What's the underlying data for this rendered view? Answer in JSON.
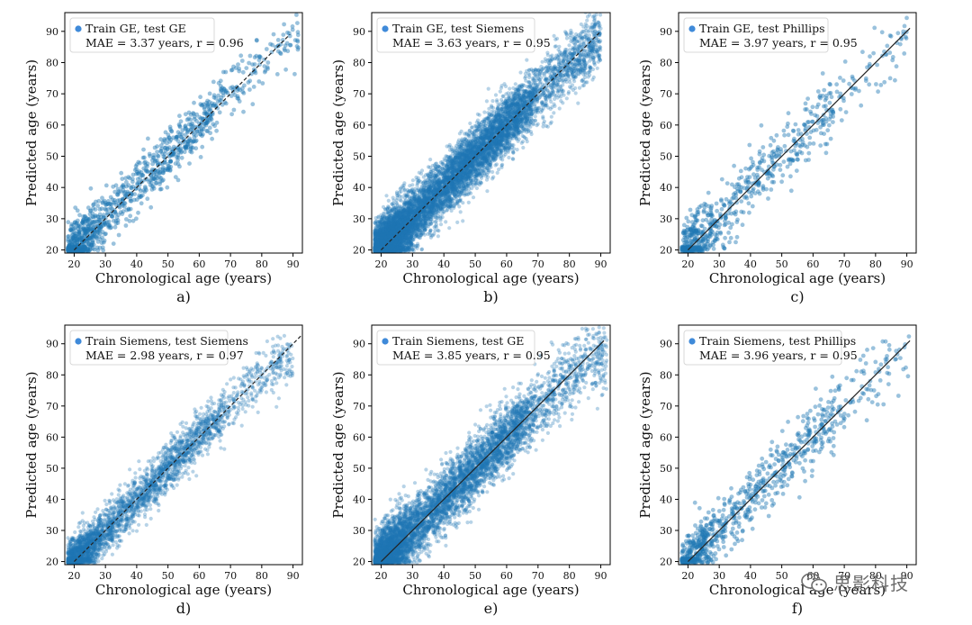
{
  "colors": {
    "point": "#1f77b4",
    "axis": "#000000",
    "identity": "#222222",
    "legend_dot": "#3f8ad9"
  },
  "chart_data": [
    {
      "type": "scatter",
      "panel_label": "a)",
      "legend": "Train GE, test GE",
      "stat": "MAE = 3.37 years, r = 0.96",
      "xlabel": "Chronological age (years)",
      "ylabel": "Predicted age (years)",
      "xlim": [
        17,
        93
      ],
      "ylim": [
        19,
        96
      ],
      "xticks": [
        20,
        30,
        40,
        50,
        60,
        70,
        80,
        90
      ],
      "yticks": [
        20,
        30,
        40,
        50,
        60,
        70,
        80,
        90
      ],
      "identity_line": [
        20,
        89
      ],
      "identity_style": "dashed",
      "mae": 3.37,
      "r": 0.96,
      "approx_points": 1100,
      "x_range": [
        18,
        92
      ]
    },
    {
      "type": "scatter",
      "panel_label": "b)",
      "legend": "Train GE, test Siemens",
      "stat": "MAE = 3.63 years, r = 0.95",
      "xlabel": "Chronological age (years)",
      "ylabel": "Predicted age (years)",
      "xlim": [
        17,
        93
      ],
      "ylim": [
        19,
        96
      ],
      "xticks": [
        20,
        30,
        40,
        50,
        60,
        70,
        80,
        90
      ],
      "yticks": [
        20,
        30,
        40,
        50,
        60,
        70,
        80,
        90
      ],
      "identity_line": [
        20,
        90
      ],
      "identity_style": "dashed",
      "mae": 3.63,
      "r": 0.95,
      "approx_points": 9000,
      "x_range": [
        18,
        90
      ]
    },
    {
      "type": "scatter",
      "panel_label": "c)",
      "legend": "Train GE, test Phillips",
      "stat": "MAE = 3.97 years, r = 0.95",
      "xlabel": "Chronological age (years)",
      "ylabel": "Predicted age (years)",
      "xlim": [
        17,
        93
      ],
      "ylim": [
        19,
        96
      ],
      "xticks": [
        20,
        30,
        40,
        50,
        60,
        70,
        80,
        90
      ],
      "yticks": [
        20,
        30,
        40,
        50,
        60,
        70,
        80,
        90
      ],
      "identity_line": [
        20,
        91
      ],
      "identity_style": "solid",
      "mae": 3.97,
      "r": 0.95,
      "approx_points": 700,
      "x_range": [
        18,
        90
      ]
    },
    {
      "type": "scatter",
      "panel_label": "d)",
      "legend": "Train Siemens, test Siemens",
      "stat": "MAE = 2.98 years, r = 0.97",
      "xlabel": "Chronological age (years)",
      "ylabel": "Predicted age (years)",
      "xlim": [
        17,
        93
      ],
      "ylim": [
        19,
        96
      ],
      "xticks": [
        20,
        30,
        40,
        50,
        60,
        70,
        80,
        90
      ],
      "yticks": [
        20,
        30,
        40,
        50,
        60,
        70,
        80,
        90
      ],
      "identity_line": [
        20,
        93
      ],
      "identity_style": "dashed",
      "mae": 2.98,
      "r": 0.97,
      "approx_points": 3000,
      "x_range": [
        18,
        90
      ]
    },
    {
      "type": "scatter",
      "panel_label": "e)",
      "legend": "Train Siemens, test GE",
      "stat": "MAE = 3.85 years, r = 0.95",
      "xlabel": "Chronological age (years)",
      "ylabel": "Predicted age (years)",
      "xlim": [
        17,
        93
      ],
      "ylim": [
        19,
        96
      ],
      "xticks": [
        20,
        30,
        40,
        50,
        60,
        70,
        80,
        90
      ],
      "yticks": [
        20,
        30,
        40,
        50,
        60,
        70,
        80,
        90
      ],
      "identity_line": [
        20,
        91
      ],
      "identity_style": "solid",
      "mae": 3.85,
      "r": 0.95,
      "approx_points": 6000,
      "x_range": [
        18,
        92
      ]
    },
    {
      "type": "scatter",
      "panel_label": "f)",
      "legend": "Train Siemens, test Phillips",
      "stat": "MAE = 3.96 years, r = 0.95",
      "xlabel": "Chronological age (years)",
      "ylabel": "Predicted age (years)",
      "xlim": [
        17,
        93
      ],
      "ylim": [
        19,
        96
      ],
      "xticks": [
        20,
        30,
        40,
        50,
        60,
        70,
        80,
        90
      ],
      "yticks": [
        20,
        30,
        40,
        50,
        60,
        70,
        80,
        90
      ],
      "identity_line": [
        20,
        91
      ],
      "identity_style": "solid",
      "mae": 3.96,
      "r": 0.95,
      "approx_points": 800,
      "x_range": [
        18,
        91
      ]
    }
  ],
  "watermark": {
    "text": "思影科技"
  }
}
